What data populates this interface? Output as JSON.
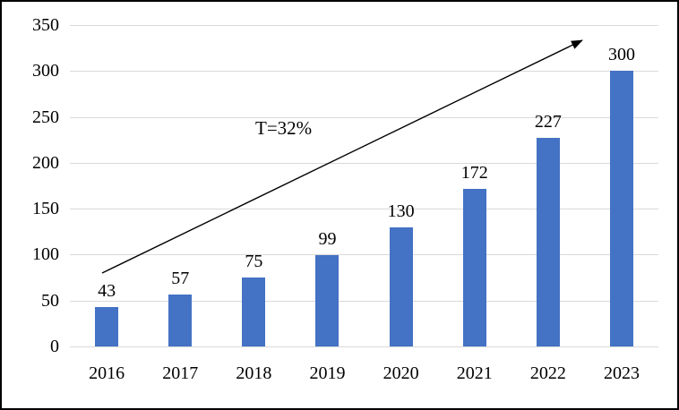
{
  "chart_data": {
    "type": "bar",
    "title": "",
    "xlabel": "",
    "ylabel": "",
    "categories": [
      "2016",
      "2017",
      "2018",
      "2019",
      "2020",
      "2021",
      "2022",
      "2023"
    ],
    "values": [
      43,
      57,
      75,
      99,
      130,
      172,
      227,
      300
    ],
    "data_labels_shown": true,
    "ylim": [
      0,
      350
    ],
    "yticks": [
      0,
      50,
      100,
      150,
      200,
      250,
      300,
      350
    ],
    "grid": true,
    "legend": false,
    "annotation": "T=32%",
    "trend_arrow": {
      "label": "T=32%",
      "from_category": "2016",
      "to_category": "2023",
      "direction": "up-right",
      "color": "#000000"
    },
    "colors": {
      "bar": "#4472C4",
      "gridline": "#D9D9D9",
      "text": "#000000",
      "frame_border": "#000000",
      "background": "#FFFFFF"
    }
  }
}
